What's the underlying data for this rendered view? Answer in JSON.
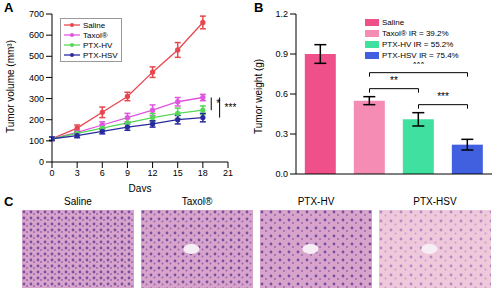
{
  "chart_data": [
    {
      "panel": "A",
      "type": "line",
      "x_label": "Days",
      "y_label": "Tumor volume (mm³)",
      "x": [
        0,
        3,
        6,
        9,
        12,
        15,
        18
      ],
      "xlim": [
        0,
        21
      ],
      "xticks": [
        0,
        3,
        6,
        9,
        12,
        15,
        18,
        21
      ],
      "ylim": [
        0,
        700
      ],
      "yticks": [
        0,
        100,
        200,
        300,
        400,
        500,
        600,
        700
      ],
      "legend": "upper left",
      "series": [
        {
          "name": "Saline",
          "color": "#e8474f",
          "marker": "circle",
          "values": [
            110,
            160,
            235,
            310,
            425,
            530,
            660
          ],
          "errors": [
            8,
            15,
            25,
            20,
            25,
            35,
            30
          ]
        },
        {
          "name": "Taxol®",
          "color": "#e055e0",
          "marker": "circle",
          "values": [
            110,
            140,
            175,
            210,
            245,
            285,
            305
          ],
          "errors": [
            8,
            10,
            15,
            20,
            25,
            20,
            15
          ]
        },
        {
          "name": "PTX-HV",
          "color": "#55d855",
          "marker": "circle",
          "values": [
            110,
            135,
            160,
            185,
            210,
            230,
            245
          ],
          "errors": [
            8,
            10,
            15,
            20,
            20,
            25,
            20
          ]
        },
        {
          "name": "PTX-HSV",
          "color": "#2a2aa0",
          "marker": "circle",
          "values": [
            110,
            125,
            145,
            165,
            180,
            200,
            210
          ],
          "errors": [
            8,
            10,
            12,
            15,
            15,
            20,
            20
          ]
        }
      ],
      "annotations": [
        {
          "x": 19,
          "y1": 305,
          "y2": 245,
          "text": "*"
        },
        {
          "x": 20,
          "y1": 305,
          "y2": 210,
          "text": "***"
        }
      ]
    },
    {
      "panel": "B",
      "type": "bar",
      "y_label": "Tumor weight (g)",
      "categories": [
        "Saline",
        "Taxol® IR = 39.2%",
        "PTX-HV IR = 55.2%",
        "PTX-HSV IR = 75.4%"
      ],
      "values": [
        0.9,
        0.55,
        0.41,
        0.22
      ],
      "errors": [
        0.07,
        0.03,
        0.05,
        0.04
      ],
      "colors": [
        "#f0508a",
        "#f58cb4",
        "#40e0a0",
        "#4060e0"
      ],
      "ylim": [
        0,
        1.2
      ],
      "yticks": [
        {
          "value": 0,
          "label": "0.0"
        },
        0.3,
        0.6,
        0.9,
        1.2
      ],
      "tick_labels": "y",
      "legend": "upper right",
      "annotations": [
        {
          "from": 1,
          "to": 2,
          "y": 0.64,
          "text": "**"
        },
        {
          "from": 2,
          "to": 3,
          "y": 0.52,
          "text": "***"
        },
        {
          "from": 1,
          "to": 3,
          "y": 0.76,
          "text": "***"
        }
      ]
    }
  ],
  "images": {
    "panel": "C",
    "captions": [
      "Saline",
      "Taxol®",
      "PTX-HV",
      "PTX-HSV"
    ]
  }
}
